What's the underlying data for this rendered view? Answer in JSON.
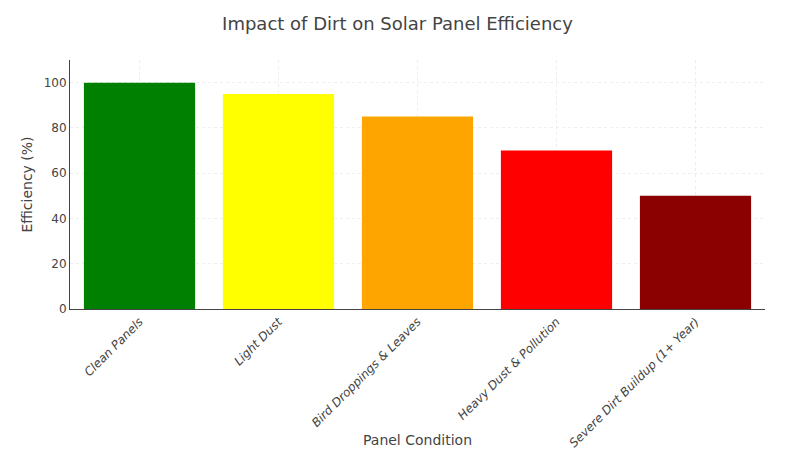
{
  "chart_data": {
    "type": "bar",
    "title": "Impact of Dirt on Solar Panel Efficiency",
    "xlabel": "Panel Condition",
    "ylabel": "Efficiency (%)",
    "categories": [
      "Clean Panels",
      "Light Dust",
      "Bird Droppings & Leaves",
      "Heavy Dust & Pollution",
      "Severe Dirt Buildup (1+ Year)"
    ],
    "values": [
      100,
      95,
      85,
      70,
      50
    ],
    "colors": [
      "#008000",
      "#ffff00",
      "#ffa500",
      "#ff0000",
      "#8b0000"
    ],
    "ylim": [
      0,
      110
    ],
    "yticks": [
      0,
      20,
      40,
      60,
      80,
      100
    ],
    "grid": true
  }
}
